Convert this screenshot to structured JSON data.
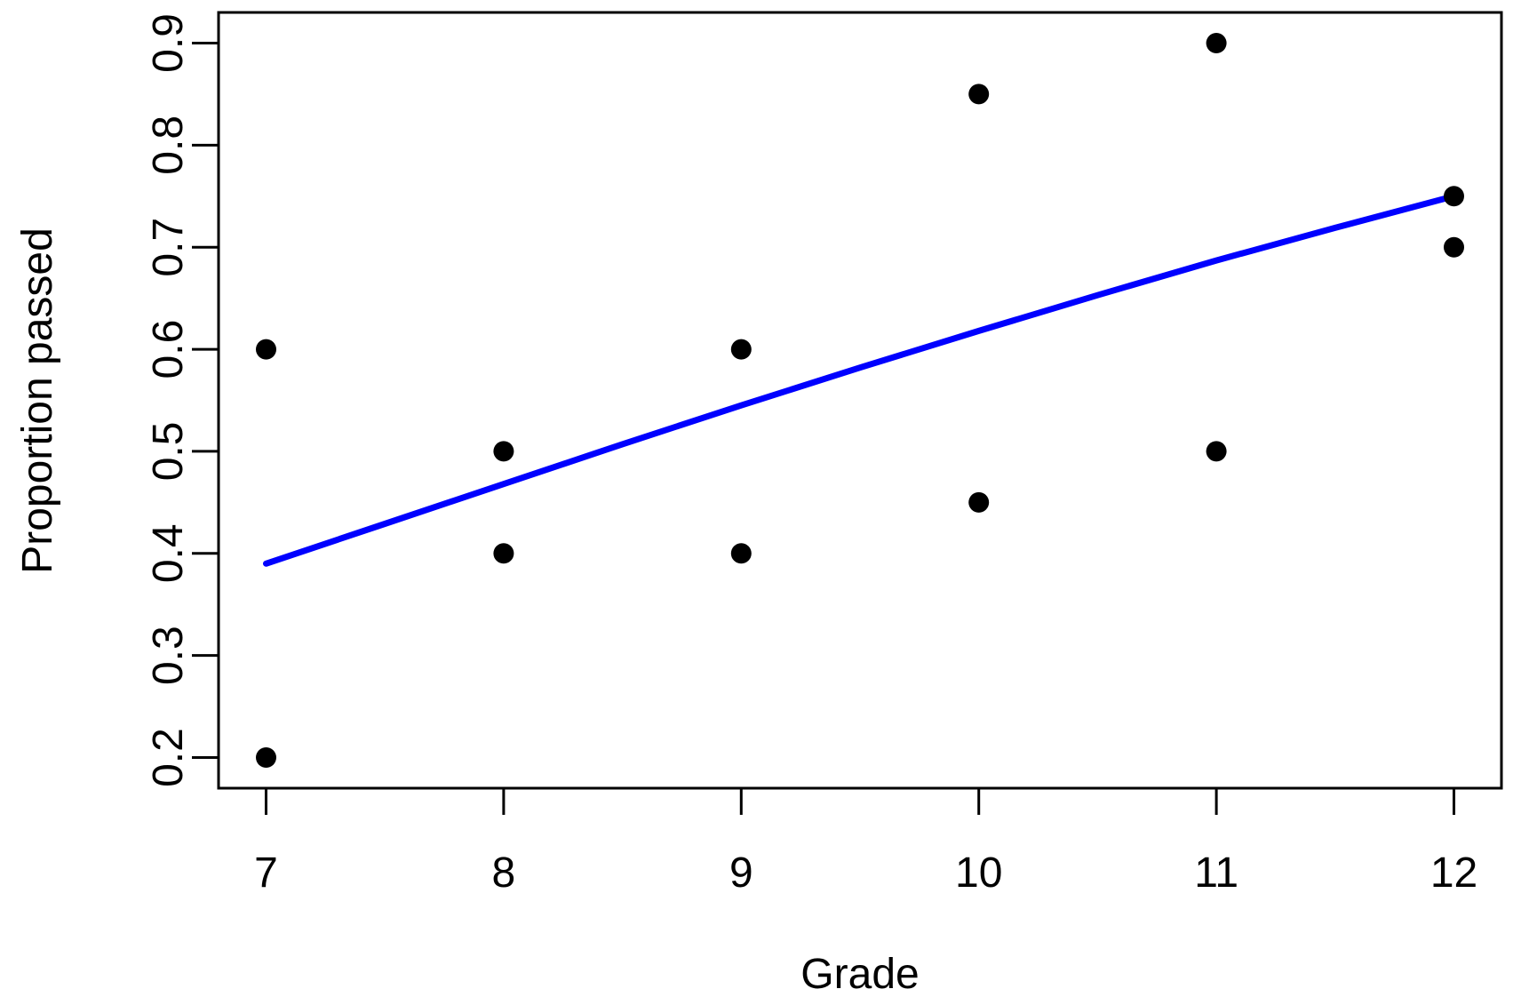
{
  "chart_data": {
    "type": "scatter",
    "xlabel": "Grade",
    "ylabel": "Proportion passed",
    "xlim": [
      6.8,
      12.2
    ],
    "ylim": [
      0.17,
      0.93
    ],
    "x_ticks": [
      7,
      8,
      9,
      10,
      11,
      12
    ],
    "y_ticks": [
      0.2,
      0.3,
      0.4,
      0.5,
      0.6,
      0.7,
      0.8,
      0.9
    ],
    "grid": false,
    "legend_position": "none",
    "point_color": "#000000",
    "axis_color": "#000000",
    "background_color": "#ffffff",
    "points": [
      {
        "x": 7,
        "y": 0.6
      },
      {
        "x": 7,
        "y": 0.2
      },
      {
        "x": 8,
        "y": 0.5
      },
      {
        "x": 8,
        "y": 0.4
      },
      {
        "x": 9,
        "y": 0.6
      },
      {
        "x": 9,
        "y": 0.4
      },
      {
        "x": 10,
        "y": 0.85
      },
      {
        "x": 10,
        "y": 0.45
      },
      {
        "x": 11,
        "y": 0.9
      },
      {
        "x": 11,
        "y": 0.5
      },
      {
        "x": 12,
        "y": 0.75
      },
      {
        "x": 12,
        "y": 0.7
      }
    ],
    "trend_line": {
      "name": "logistic-fit-line",
      "color": "#0000FF",
      "x": [
        7,
        7.5,
        8,
        8.5,
        9,
        9.5,
        10,
        10.5,
        11,
        11.5,
        12
      ],
      "y": [
        0.39,
        0.429,
        0.468,
        0.507,
        0.545,
        0.582,
        0.618,
        0.653,
        0.687,
        0.719,
        0.75
      ]
    }
  }
}
